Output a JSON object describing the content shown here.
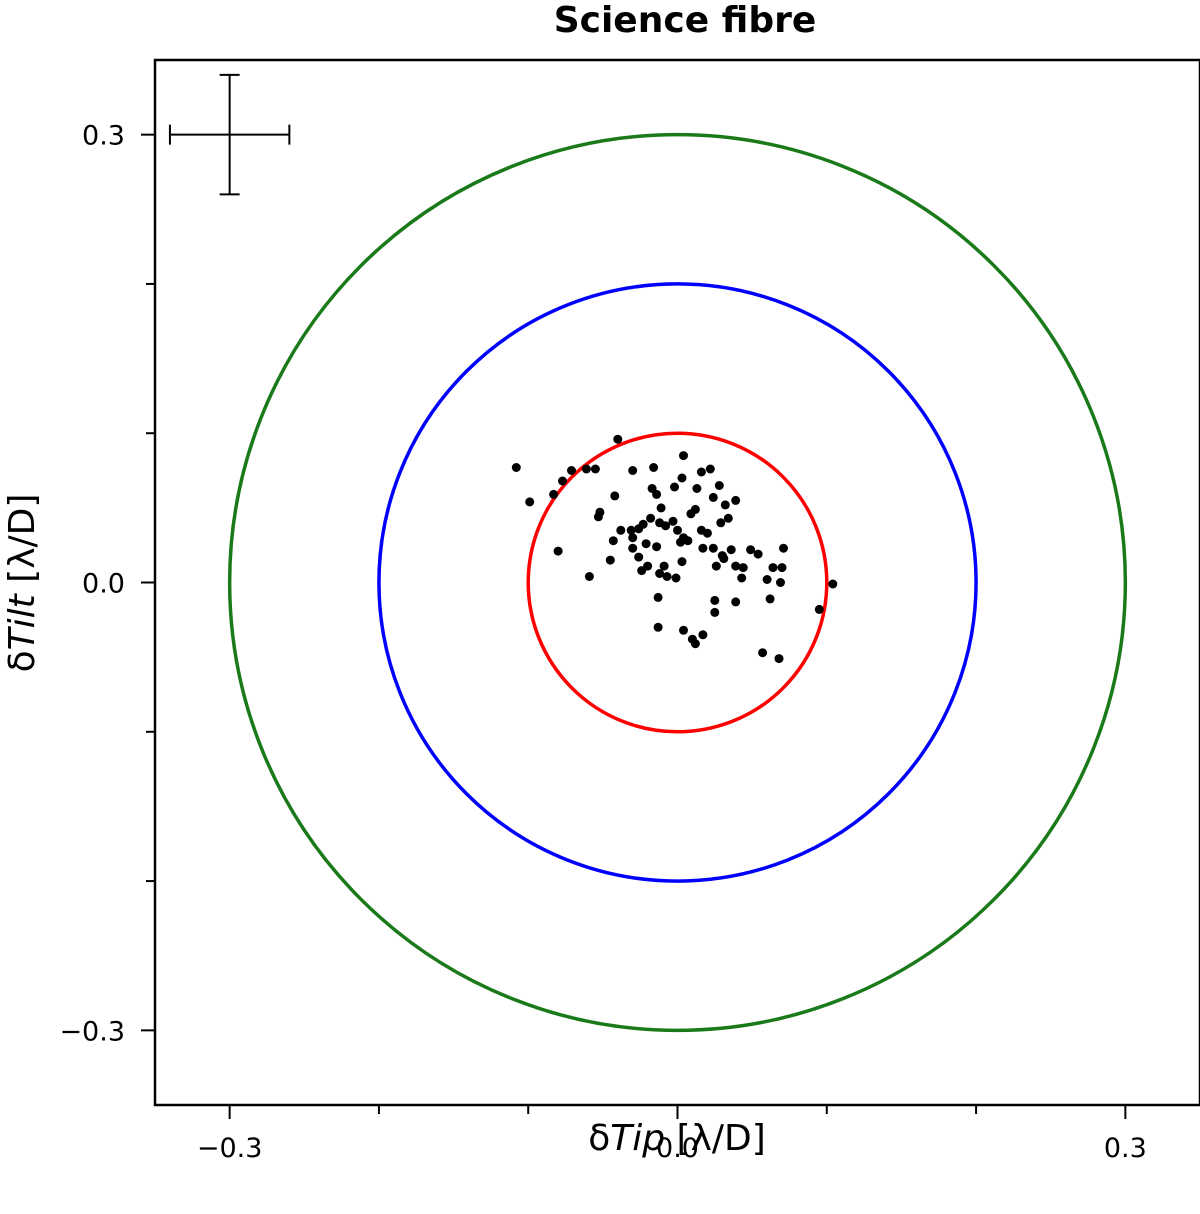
{
  "chart_data": {
    "type": "scatter",
    "title": "Science fibre",
    "xlabel": {
      "prefix": "δ",
      "italic": "Tip",
      "unit": " [λ/D]"
    },
    "ylabel": {
      "prefix": "δ",
      "italic": "Tilt",
      "unit": " [λ/D]"
    },
    "xlim": [
      -0.35,
      0.35
    ],
    "ylim": [
      -0.35,
      0.35
    ],
    "x_ticks_major": [
      -0.3,
      0.0,
      0.3
    ],
    "x_tick_labels": [
      "−0.3",
      "0.0",
      "0.3"
    ],
    "y_ticks_major": [
      -0.3,
      0.0,
      0.3
    ],
    "y_tick_labels": [
      "−0.3",
      "0.0",
      "0.3"
    ],
    "ticks_minor": [
      -0.2,
      -0.1,
      0.1,
      0.2
    ],
    "grid": false,
    "circles": [
      {
        "radius": 0.3,
        "color": "#1a7a1a"
      },
      {
        "radius": 0.2,
        "color": "#0000ff"
      },
      {
        "radius": 0.1,
        "color": "#ff0000"
      }
    ],
    "error_bar": {
      "x": -0.3,
      "y": 0.3,
      "xerr": 0.04,
      "yerr": 0.04
    },
    "points": [
      [
        -0.108,
        0.077
      ],
      [
        -0.099,
        0.054
      ],
      [
        -0.077,
        0.068
      ],
      [
        -0.083,
        0.059
      ],
      [
        -0.071,
        0.075
      ],
      [
        -0.061,
        0.076
      ],
      [
        -0.04,
        0.096
      ],
      [
        -0.055,
        0.076
      ],
      [
        -0.042,
        0.058
      ],
      [
        -0.052,
        0.047
      ],
      [
        -0.053,
        0.044
      ],
      [
        -0.038,
        0.035
      ],
      [
        -0.031,
        0.035
      ],
      [
        -0.026,
        0.036
      ],
      [
        -0.03,
        0.03
      ],
      [
        -0.026,
        0.017
      ],
      [
        -0.043,
        0.028
      ],
      [
        -0.045,
        0.015
      ],
      [
        -0.03,
        0.023
      ],
      [
        -0.021,
        0.026
      ],
      [
        -0.014,
        0.024
      ],
      [
        -0.023,
        0.039
      ],
      [
        -0.018,
        0.043
      ],
      [
        -0.012,
        0.04
      ],
      [
        -0.008,
        0.038
      ],
      [
        -0.003,
        0.041
      ],
      [
        0.0,
        0.035
      ],
      [
        0.004,
        0.03
      ],
      [
        0.007,
        0.028
      ],
      [
        0.002,
        0.027
      ],
      [
        -0.03,
        0.075
      ],
      [
        -0.017,
        0.063
      ],
      [
        -0.014,
        0.059
      ],
      [
        -0.011,
        0.05
      ],
      [
        -0.016,
        0.077
      ],
      [
        -0.002,
        0.064
      ],
      [
        0.003,
        0.07
      ],
      [
        0.013,
        0.063
      ],
      [
        0.016,
        0.074
      ],
      [
        0.022,
        0.076
      ],
      [
        0.004,
        0.085
      ],
      [
        0.012,
        0.049
      ],
      [
        0.024,
        0.057
      ],
      [
        0.028,
        0.065
      ],
      [
        0.032,
        0.052
      ],
      [
        0.039,
        0.055
      ],
      [
        0.029,
        0.04
      ],
      [
        0.034,
        0.043
      ],
      [
        0.02,
        0.033
      ],
      [
        0.024,
        0.023
      ],
      [
        0.017,
        0.023
      ],
      [
        0.036,
        0.022
      ],
      [
        0.03,
        0.018
      ],
      [
        0.039,
        0.011
      ],
      [
        0.044,
        0.01
      ],
      [
        0.026,
        0.011
      ],
      [
        0.043,
        0.003
      ],
      [
        0.054,
        0.019
      ],
      [
        0.064,
        0.01
      ],
      [
        0.07,
        0.01
      ],
      [
        0.069,
        0.0
      ],
      [
        0.071,
        0.023
      ],
      [
        0.06,
        0.002
      ],
      [
        0.062,
        -0.011
      ],
      [
        0.039,
        -0.013
      ],
      [
        0.025,
        -0.012
      ],
      [
        0.025,
        -0.02
      ],
      [
        0.104,
        -0.001
      ],
      [
        0.095,
        -0.018
      ],
      [
        0.057,
        -0.047
      ],
      [
        0.068,
        -0.051
      ],
      [
        0.017,
        -0.035
      ],
      [
        0.004,
        -0.032
      ],
      [
        0.01,
        -0.038
      ],
      [
        0.012,
        -0.041
      ],
      [
        -0.013,
        -0.03
      ],
      [
        -0.013,
        -0.01
      ],
      [
        -0.059,
        0.004
      ],
      [
        -0.08,
        0.021
      ],
      [
        0.003,
        0.014
      ],
      [
        -0.007,
        0.004
      ],
      [
        -0.024,
        0.008
      ],
      [
        -0.02,
        0.011
      ],
      [
        -0.012,
        0.006
      ],
      [
        -0.009,
        0.011
      ],
      [
        0.009,
        0.046
      ],
      [
        -0.001,
        0.003
      ],
      [
        0.031,
        0.016
      ],
      [
        0.049,
        0.022
      ],
      [
        0.016,
        0.035
      ]
    ]
  }
}
